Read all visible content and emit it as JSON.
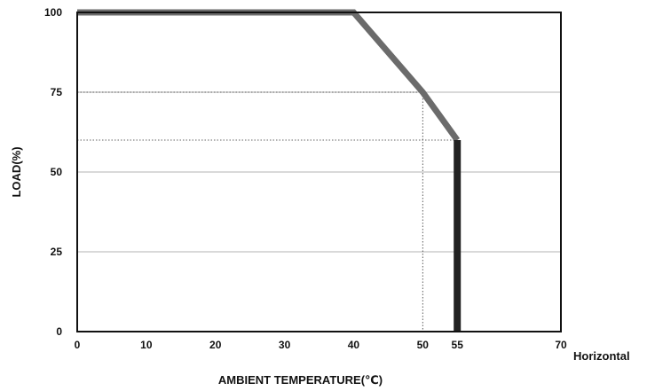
{
  "chart_data": {
    "type": "line",
    "xlabel": "AMBIENT TEMPERATURE(℃)",
    "ylabel": "LOAD(%)",
    "x_extra_label": "Horizontal",
    "xlim": [
      0,
      70
    ],
    "ylim": [
      0,
      100
    ],
    "x_ticks": [
      0,
      10,
      20,
      30,
      40,
      50,
      55,
      70
    ],
    "y_ticks": [
      0,
      25,
      50,
      75,
      100
    ],
    "grid": true,
    "series": [
      {
        "points": [
          [
            0,
            100
          ],
          [
            40,
            100
          ],
          [
            50,
            75
          ],
          [
            55,
            60
          ]
        ],
        "color": "#6b6b6b"
      }
    ],
    "cutoff": {
      "x": 55,
      "y_from": 60,
      "y_to": 0,
      "color": "#222222"
    },
    "reference_lines": [
      {
        "x": 50,
        "y": 75
      },
      {
        "x": 55,
        "y": 60
      }
    ]
  }
}
